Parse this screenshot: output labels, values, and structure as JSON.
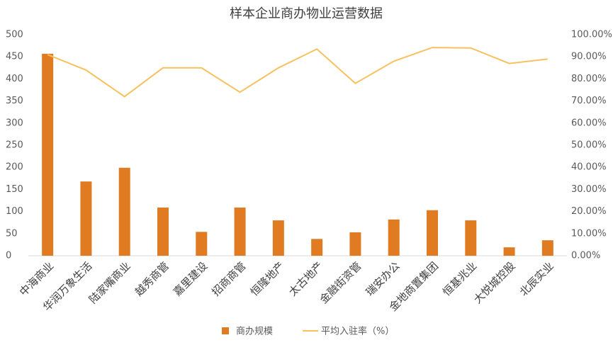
{
  "chart_data": {
    "type": "bar-line",
    "title": "样本企业商办物业运营数据",
    "categories": [
      "中海商业",
      "华润万象生活",
      "陆家嘴商业",
      "越秀商管",
      "嘉里建设",
      "招商商管",
      "恒隆地产",
      "太古地产",
      "金融街资管",
      "瑞安办公",
      "金地商置集团",
      "恒基兆业",
      "大悦城控股",
      "北辰实业"
    ],
    "series": [
      {
        "name": "商办规模",
        "type": "bar",
        "color": "#e07b22",
        "values": [
          457,
          168,
          199,
          109,
          54,
          109,
          80,
          38,
          53,
          82,
          103,
          80,
          19,
          35
        ]
      },
      {
        "name": "平均入驻率（%）",
        "type": "line",
        "axis": "y2",
        "color": "#f7c160",
        "values": [
          91,
          84,
          72,
          85,
          85,
          74,
          85,
          93.5,
          78,
          88,
          94.2,
          94,
          87,
          89
        ]
      }
    ],
    "ylim": [
      0,
      500
    ],
    "yticks": [
      0,
      50,
      100,
      150,
      200,
      250,
      300,
      350,
      400,
      450,
      500
    ],
    "y2lim": [
      0,
      100
    ],
    "y2ticks": [
      {
        "value": 0,
        "label": "0.00%"
      },
      {
        "value": 10,
        "label": "10.00%"
      },
      {
        "value": 20,
        "label": "20.00%"
      },
      {
        "value": 30,
        "label": "30.00%"
      },
      {
        "value": 40,
        "label": "40.00%"
      },
      {
        "value": 50,
        "label": "50.00%"
      },
      {
        "value": 60,
        "label": "60.00%"
      },
      {
        "value": 70,
        "label": "70.00%"
      },
      {
        "value": 80,
        "label": "80.00%"
      },
      {
        "value": 90,
        "label": "90.00%"
      },
      {
        "value": 100,
        "label": "100.00%"
      }
    ],
    "grid": false,
    "legend": "bottom"
  }
}
